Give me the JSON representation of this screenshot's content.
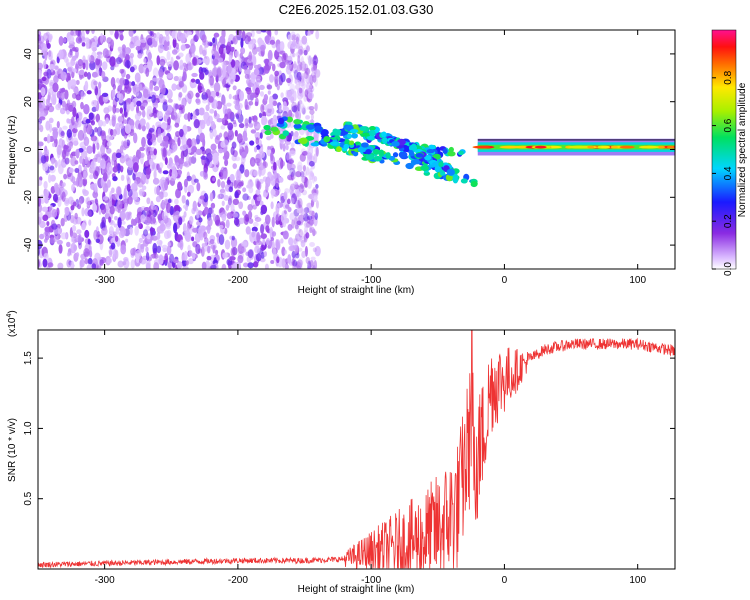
{
  "title": "C2E6.2025.152.01.03.G30",
  "chart_data": [
    {
      "type": "heatmap",
      "xlabel": "Height of straight line (km)",
      "ylabel": "Frequency (Hz)",
      "xlim": [
        -350,
        128
      ],
      "ylim": [
        -50,
        50
      ],
      "xticks": [
        -300,
        -200,
        -100,
        0,
        100
      ],
      "yticks": [
        -40,
        -20,
        0,
        20,
        40
      ],
      "colorbar": {
        "label": "Normalized spectral amplitude",
        "range": [
          0.0,
          1.0
        ],
        "ticks": [
          0.0,
          0.2,
          0.4,
          0.6,
          0.8
        ],
        "colormap": "rainbow (white-violet-blue-cyan-green-yellow-red-magenta)"
      },
      "features": [
        {
          "x": [
            -350,
            -140
          ],
          "y": [
            -50,
            50
          ],
          "amplitude": 0.1,
          "kind": "broadband noise"
        },
        {
          "x": [
            -180,
            -20
          ],
          "y": [
            8,
            -14
          ],
          "amplitude": 0.3,
          "kind": "converging streaks"
        },
        {
          "x": [
            -20,
            128
          ],
          "y": [
            1,
            1
          ],
          "amplitude": 0.85,
          "kind": "narrow band"
        }
      ]
    },
    {
      "type": "line",
      "xlabel": "Height of straight line (km)",
      "ylabel": "SNR (10 * v/v)",
      "y_scale_label": "(x10",
      "y_scale_exp": "4",
      "y_scale_close": ")",
      "xlim": [
        -350,
        128
      ],
      "ylim": [
        0,
        1.7
      ],
      "xticks": [
        -300,
        -200,
        -100,
        0,
        100
      ],
      "yticks": [
        0.5,
        1.0,
        1.5
      ],
      "ytick_labels": [
        "0.5",
        "1.0",
        "1.5"
      ],
      "color": "#ee3333",
      "x": [
        -350,
        -300,
        -250,
        -200,
        -150,
        -120,
        -100,
        -80,
        -60,
        -45,
        -35,
        -30,
        -25,
        -20,
        -15,
        -10,
        0,
        10,
        20,
        30,
        40,
        50,
        70,
        100,
        128
      ],
      "values": [
        0.03,
        0.04,
        0.05,
        0.06,
        0.06,
        0.07,
        0.12,
        0.17,
        0.22,
        0.32,
        0.45,
        0.7,
        1.0,
        0.8,
        1.0,
        1.3,
        1.35,
        1.42,
        1.5,
        1.56,
        1.58,
        1.6,
        1.6,
        1.6,
        1.55
      ]
    }
  ]
}
